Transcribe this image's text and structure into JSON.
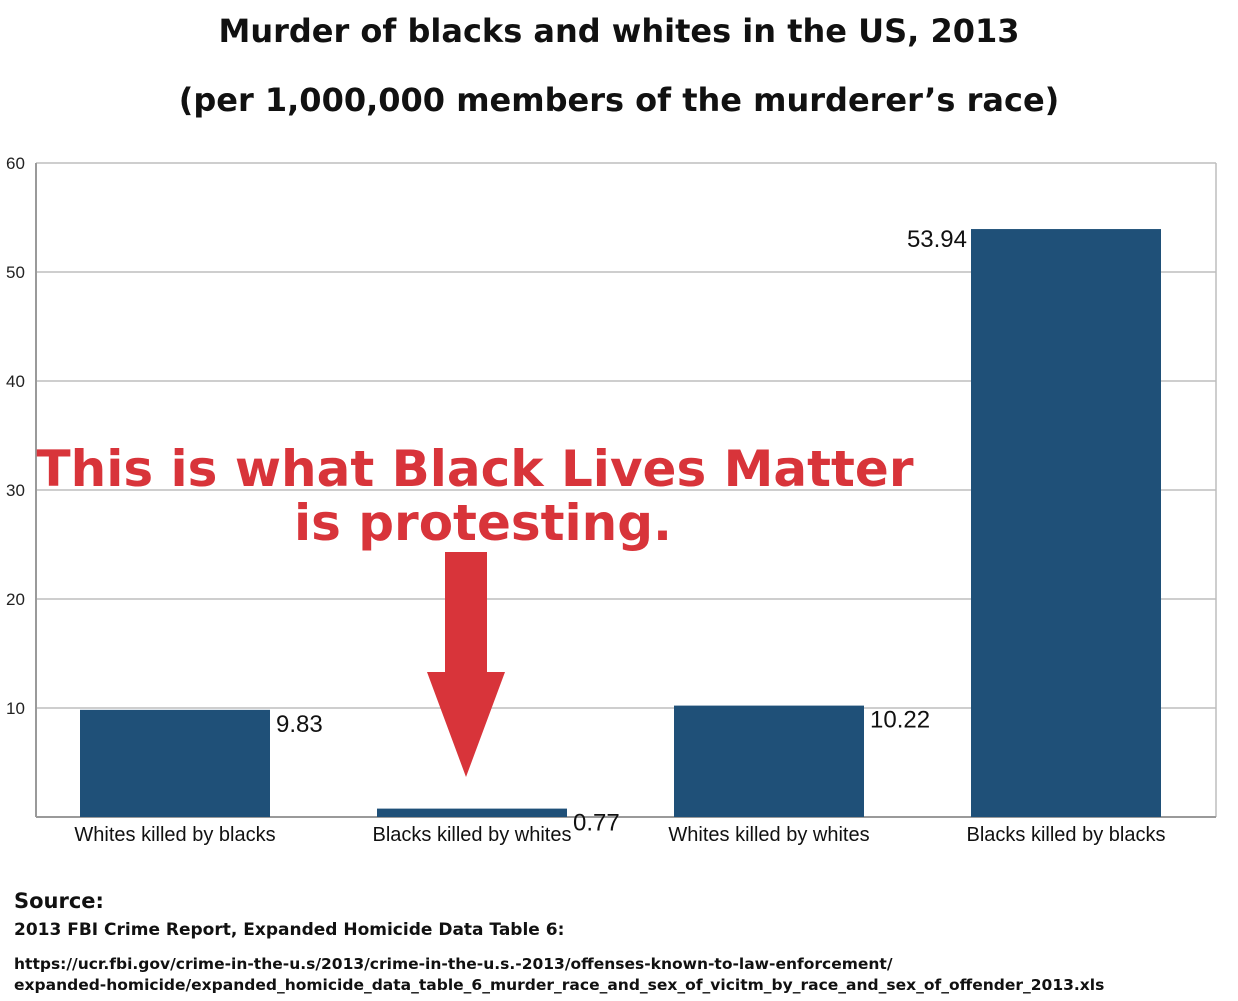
{
  "chart_data": {
    "type": "bar",
    "title": "Murder of blacks and whites in the US, 2013",
    "subtitle": "(per 1,000,000 members of the murderer’s race)",
    "categories": [
      "Whites killed by blacks",
      "Blacks killed by whites",
      "Whites killed by whites",
      "Blacks killed by blacks"
    ],
    "values": [
      9.83,
      0.77,
      10.22,
      53.94
    ],
    "value_labels": [
      "9.83",
      "0.77",
      "10.22",
      "53.94"
    ],
    "ylim": [
      0,
      60
    ],
    "yticks": [
      10,
      20,
      30,
      40,
      50,
      60
    ],
    "ytick_labels": [
      "10",
      "20",
      "30",
      "40",
      "50",
      "60"
    ],
    "grid": true,
    "bar_color": "#1f5078",
    "annotation": {
      "lines": [
        "This is what Black Lives Matter",
        "is protesting."
      ],
      "color": "#d8343a",
      "points_to": "Blacks killed by whites"
    }
  },
  "source": {
    "heading": "Source:",
    "citation": "2013 FBI Crime Report, Expanded Homicide Data Table 6:",
    "url_line_1": "https://ucr.fbi.gov/crime-in-the-u.s/2013/crime-in-the-u.s.-2013/offenses-known-to-law-enforcement/",
    "url_line_2": "expanded-homicide/expanded_homicide_data_table_6_murder_race_and_sex_of_vicitm_by_race_and_sex_of_offender_2013.xls"
  }
}
